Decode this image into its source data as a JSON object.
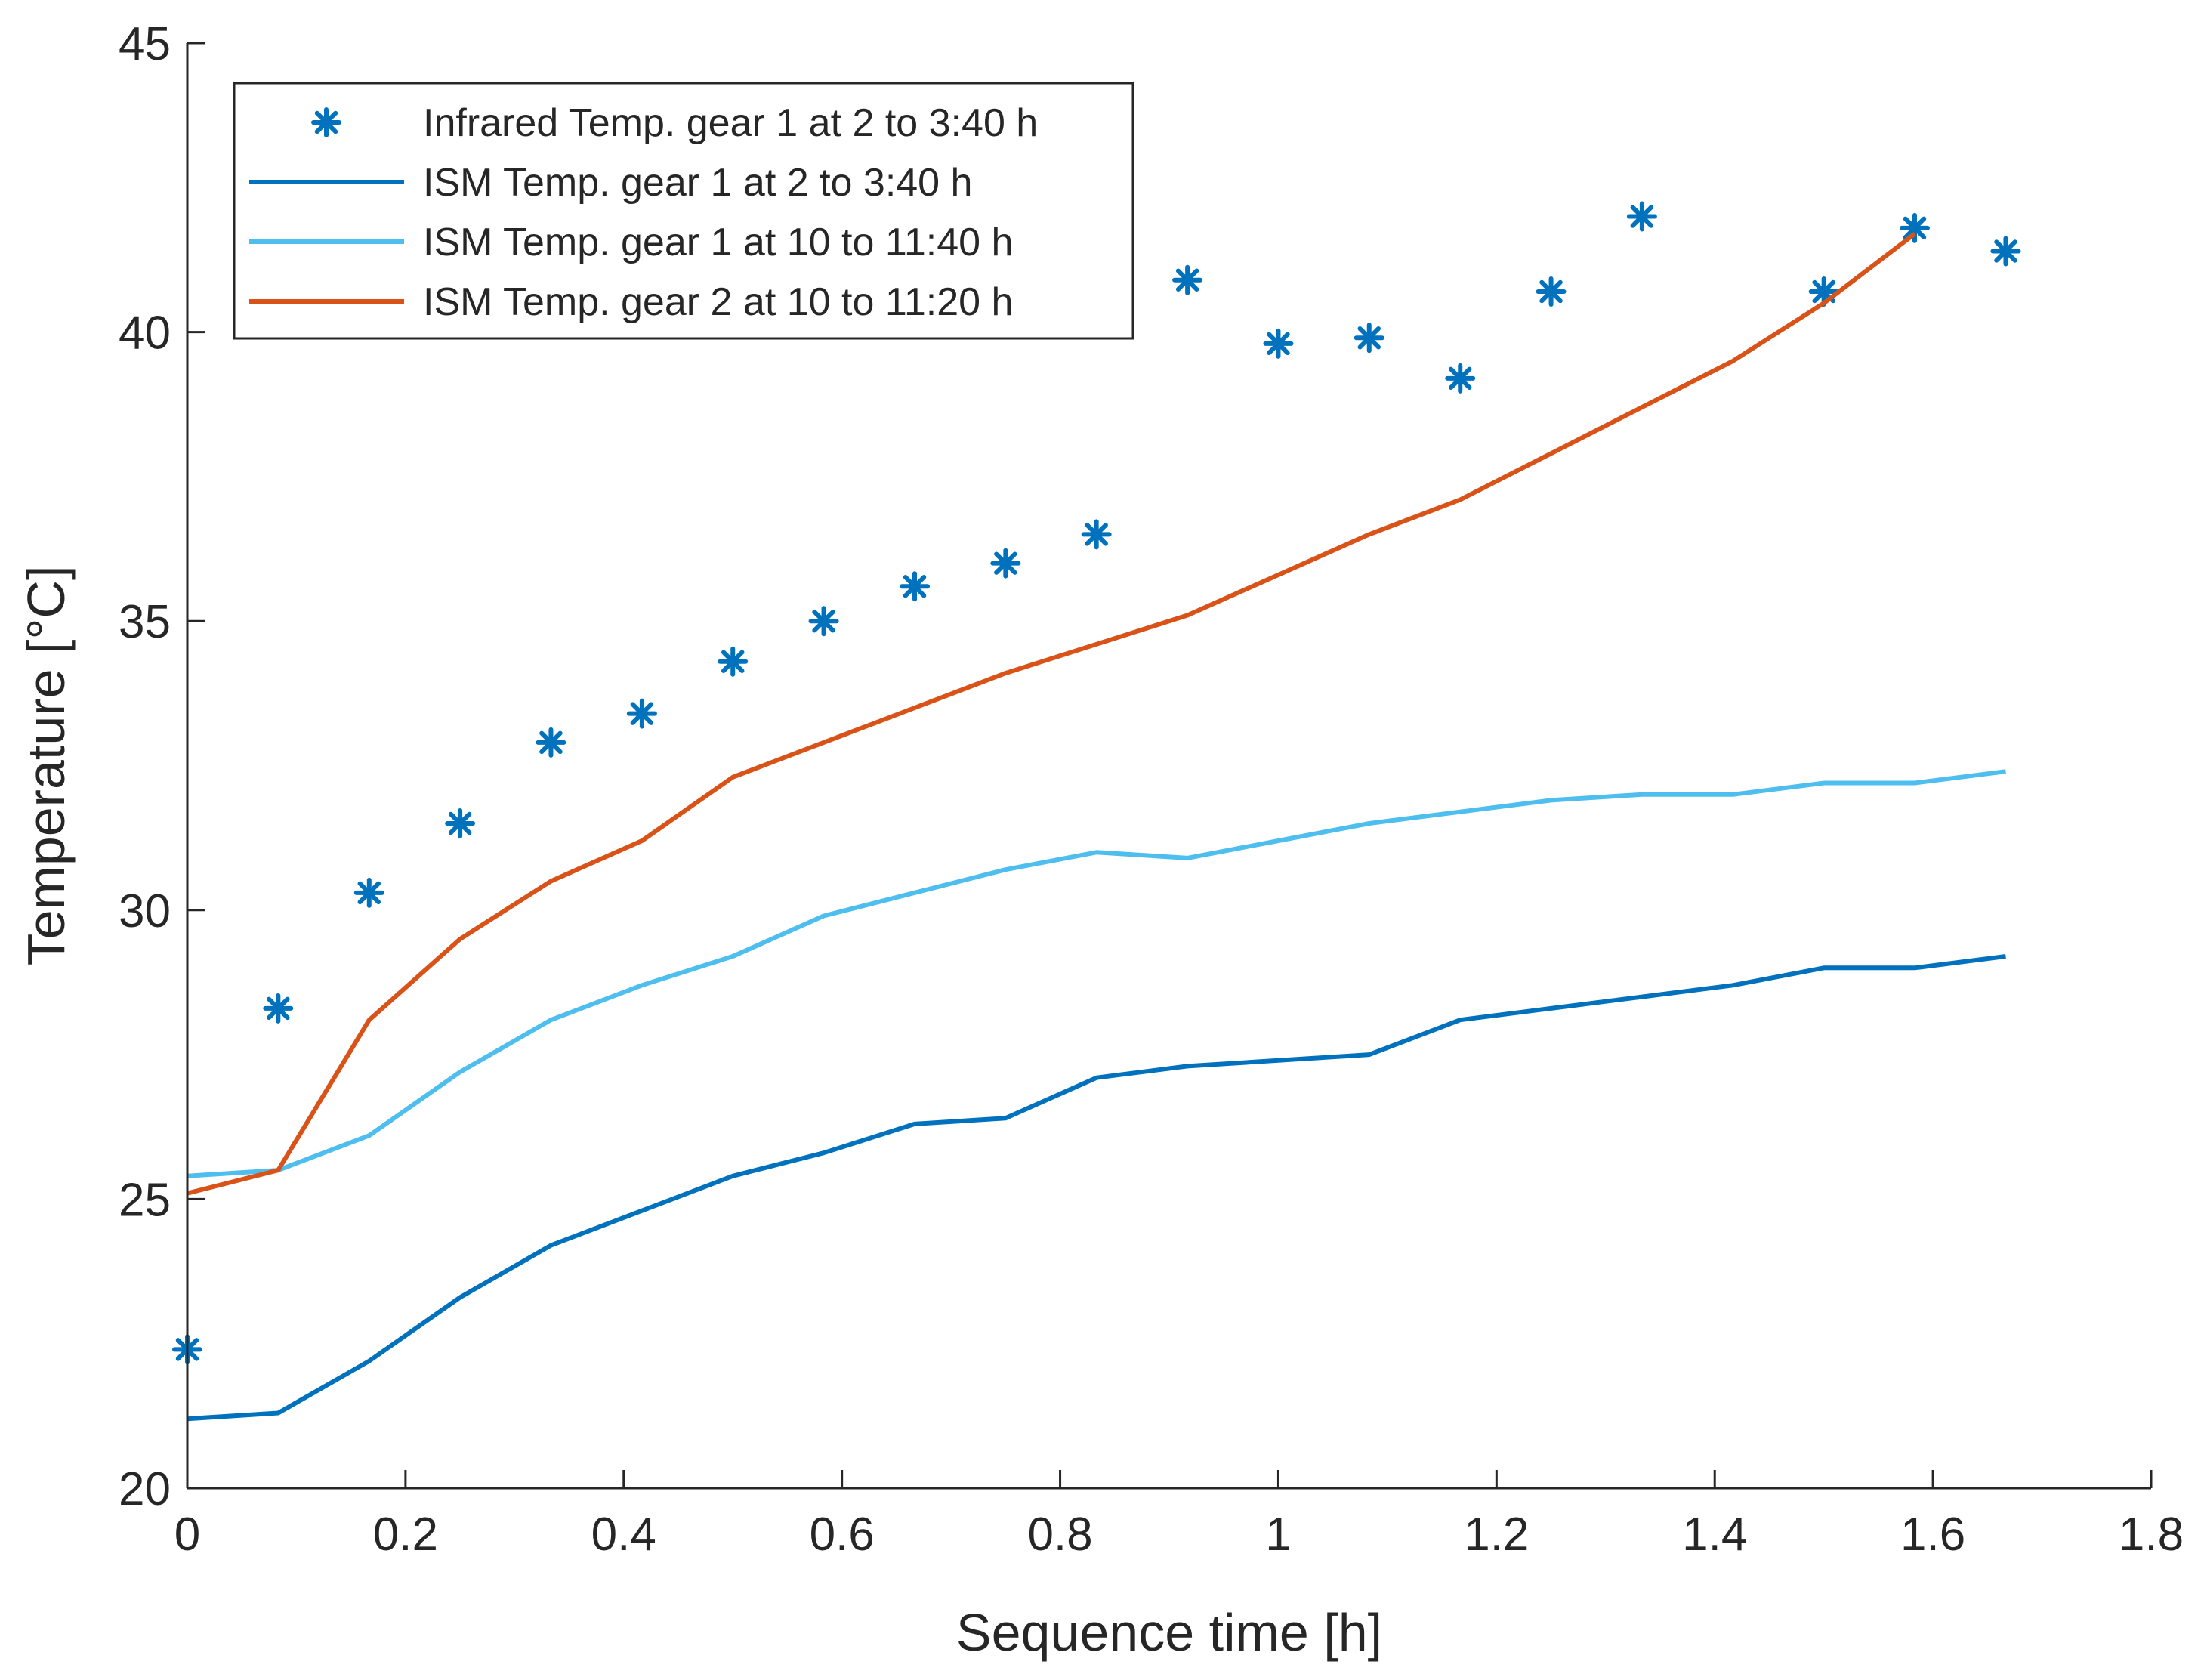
{
  "chart_data": {
    "type": "line",
    "xlabel": "Sequence time [h]",
    "ylabel": "Temperature [°C]",
    "xlim": [
      0,
      1.8
    ],
    "ylim": [
      20,
      45
    ],
    "xticks": [
      "0",
      "0.2",
      "0.4",
      "0.6",
      "0.8",
      "1",
      "1.2",
      "1.4",
      "1.6",
      "1.8"
    ],
    "yticks": [
      "20",
      "25",
      "30",
      "35",
      "40",
      "45"
    ],
    "grid": false,
    "legend_position": "top-left",
    "series": [
      {
        "name": "Infrared Temp. gear 1 at 2 to 3:40 h",
        "style": "marker",
        "marker": "asterisk",
        "color": "#0072BD",
        "x": [
          0,
          0.0833,
          0.1667,
          0.25,
          0.3333,
          0.4167,
          0.5,
          0.5833,
          0.6667,
          0.75,
          0.8333,
          0.9167,
          1.0,
          1.0833,
          1.1667,
          1.25,
          1.3333,
          1.5,
          1.5833,
          1.6667
        ],
        "y": [
          22.4,
          28.3,
          30.3,
          31.5,
          32.9,
          33.4,
          34.3,
          35.0,
          35.6,
          36.0,
          36.5,
          40.9,
          39.8,
          39.9,
          39.2,
          40.7,
          42.0,
          40.7,
          41.8,
          41.4
        ]
      },
      {
        "name": "ISM Temp. gear 1 at 2 to 3:40 h",
        "style": "line",
        "color": "#0072BD",
        "x": [
          0,
          0.0833,
          0.1667,
          0.25,
          0.3333,
          0.4167,
          0.5,
          0.5833,
          0.6667,
          0.75,
          0.8333,
          0.9167,
          1.0,
          1.0833,
          1.1667,
          1.25,
          1.3333,
          1.4167,
          1.5,
          1.5833,
          1.6667
        ],
        "y": [
          21.2,
          21.3,
          22.2,
          23.3,
          24.2,
          24.8,
          25.4,
          25.8,
          26.3,
          26.4,
          27.1,
          27.3,
          27.4,
          27.5,
          28.1,
          28.3,
          28.5,
          28.7,
          29.0,
          29.0,
          29.2
        ]
      },
      {
        "name": "ISM Temp. gear 1 at 10 to 11:40 h",
        "style": "line",
        "color": "#4DBEEE",
        "x": [
          0,
          0.0833,
          0.1667,
          0.25,
          0.3333,
          0.4167,
          0.5,
          0.5833,
          0.6667,
          0.75,
          0.8333,
          0.9167,
          1.0,
          1.0833,
          1.1667,
          1.25,
          1.3333,
          1.4167,
          1.5,
          1.5833,
          1.6667
        ],
        "y": [
          25.4,
          25.5,
          26.1,
          27.2,
          28.1,
          28.7,
          29.2,
          29.9,
          30.3,
          30.7,
          31.0,
          30.9,
          31.2,
          31.5,
          31.7,
          31.9,
          32.0,
          32.0,
          32.2,
          32.2,
          32.4
        ]
      },
      {
        "name": "ISM Temp. gear 2 at 10 to 11:20 h",
        "style": "line",
        "color": "#D95319",
        "x": [
          0,
          0.0833,
          0.1667,
          0.25,
          0.3333,
          0.4167,
          0.5,
          0.5833,
          0.6667,
          0.75,
          0.8333,
          0.9167,
          1.0,
          1.0833,
          1.1667,
          1.25,
          1.3333,
          1.4167,
          1.5,
          1.5833
        ],
        "y": [
          25.1,
          25.5,
          28.1,
          29.5,
          30.5,
          31.2,
          32.3,
          32.9,
          33.5,
          34.1,
          34.6,
          35.1,
          35.8,
          36.5,
          37.1,
          37.9,
          38.7,
          39.5,
          40.5,
          41.7
        ]
      }
    ]
  }
}
